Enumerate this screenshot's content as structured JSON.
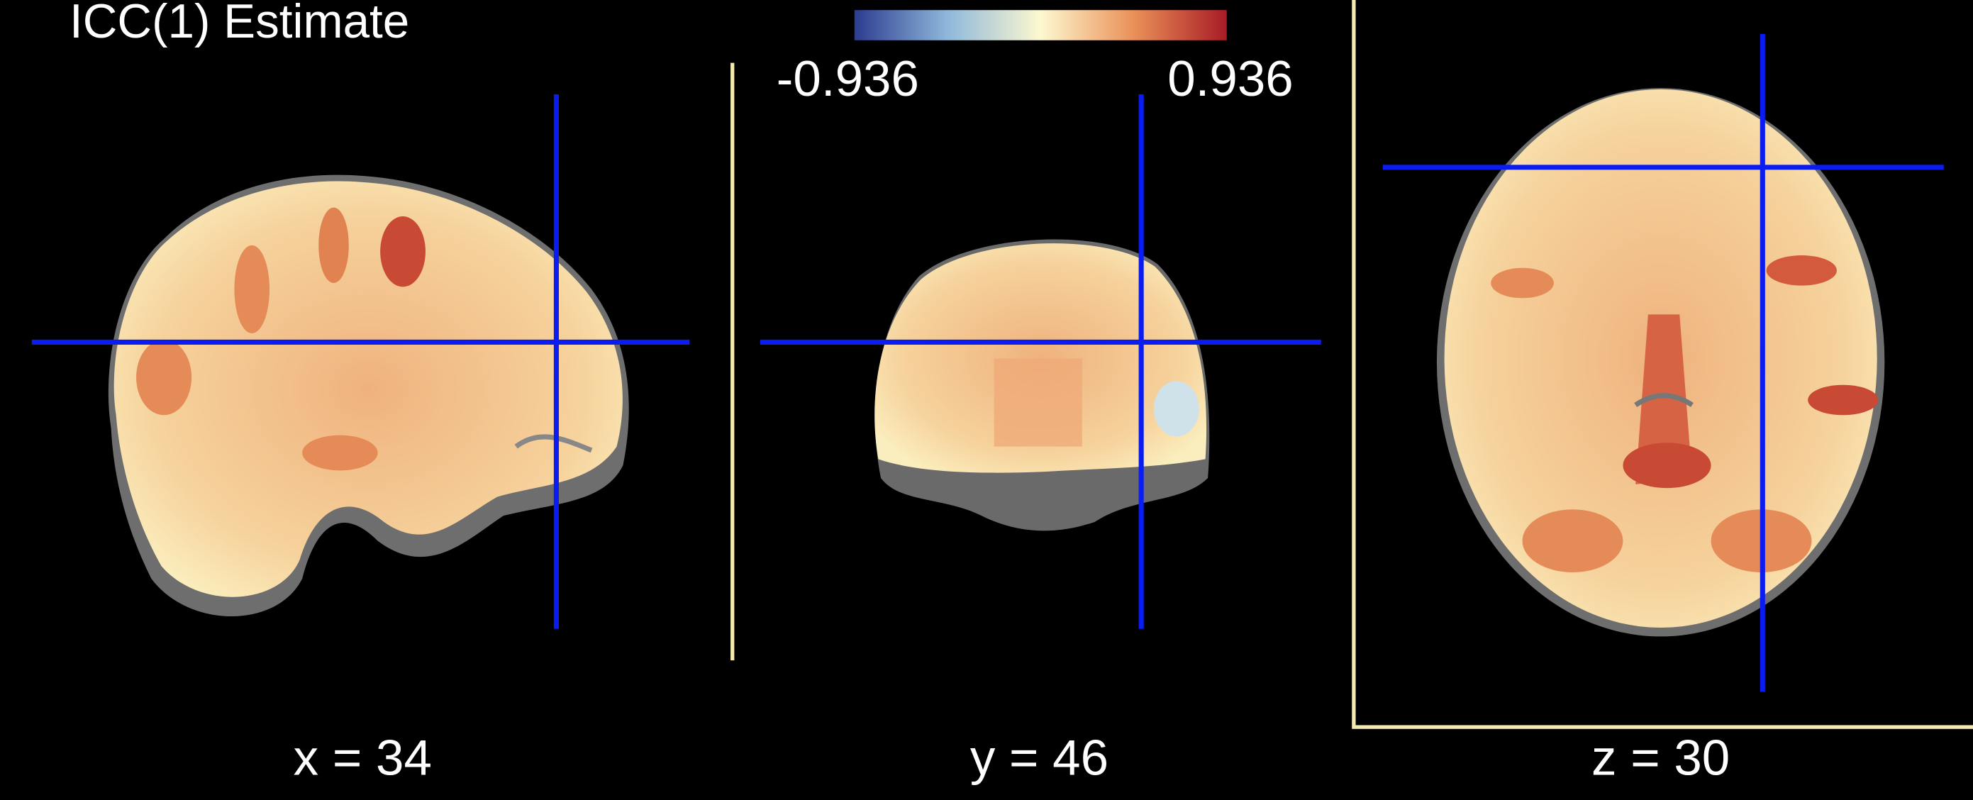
{
  "title": "ICC(1) Estimate",
  "colorbar": {
    "min_label": "-0.936",
    "max_label": "0.936"
  },
  "slices": [
    {
      "label": "x = 34"
    },
    {
      "label": "y = 46"
    },
    {
      "label": "z = 30"
    }
  ]
}
